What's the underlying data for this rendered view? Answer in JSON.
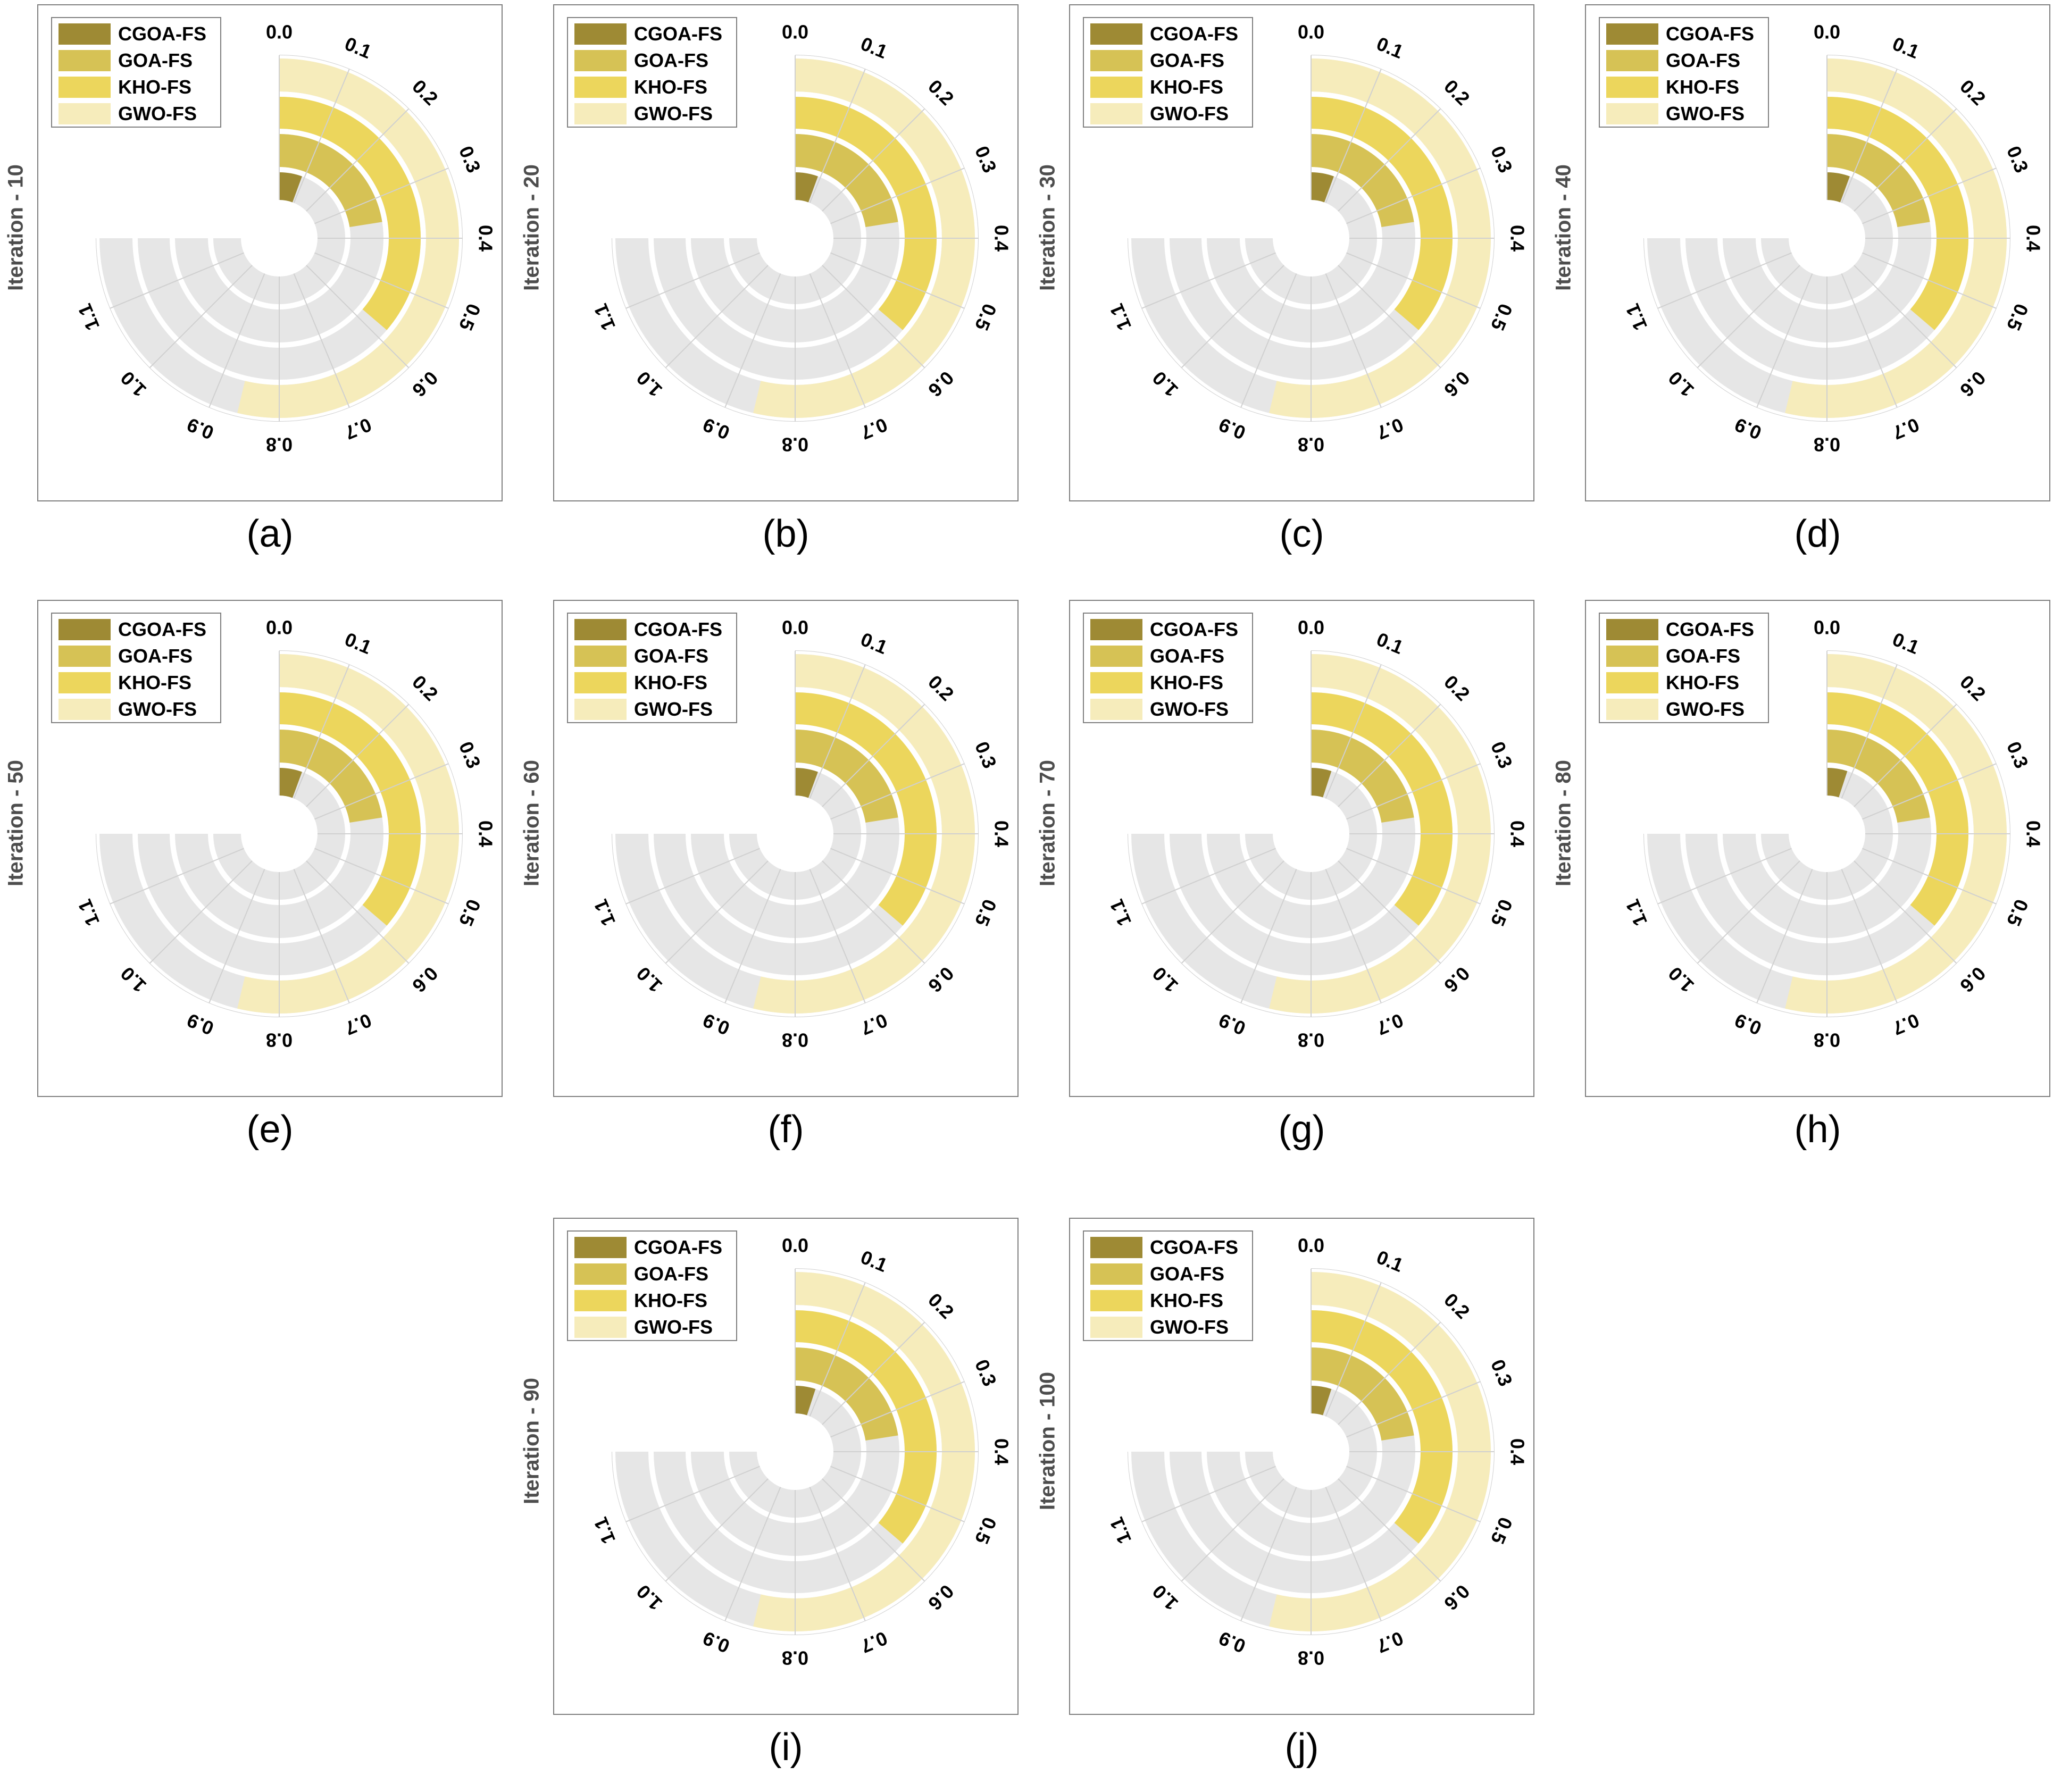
{
  "colors": {
    "background_ring": "#e6e6e6",
    "CGOA-FS": "#9e8a34",
    "GOA-FS": "#d6c255",
    "KHO-FS": "#ecd65c",
    "GWO-FS": "#f6ecbb",
    "frame": "#7f7f7f",
    "grid": "#d0d0d0"
  },
  "legend": [
    "CGOA-FS",
    "GOA-FS",
    "KHO-FS",
    "GWO-FS"
  ],
  "theta_ticks": [
    "0.0",
    "0.1",
    "0.2",
    "0.3",
    "0.4",
    "0.5",
    "0.6",
    "0.7",
    "0.8",
    "0.9",
    "1.0",
    "1.1"
  ],
  "chart_data": [
    {
      "type": "radial-bar",
      "caption": "(a)",
      "ylabel": "Iteration - 10",
      "theta_range": [
        0,
        1.2
      ],
      "series": [
        {
          "name": "CGOA-FS",
          "value": 0.09
        },
        {
          "name": "GOA-FS",
          "value": 0.36
        },
        {
          "name": "KHO-FS",
          "value": 0.58
        },
        {
          "name": "GWO-FS",
          "value": 0.86
        }
      ]
    },
    {
      "type": "radial-bar",
      "caption": "(b)",
      "ylabel": "Iteration - 20",
      "theta_range": [
        0,
        1.2
      ],
      "series": [
        {
          "name": "CGOA-FS",
          "value": 0.09
        },
        {
          "name": "GOA-FS",
          "value": 0.36
        },
        {
          "name": "KHO-FS",
          "value": 0.58
        },
        {
          "name": "GWO-FS",
          "value": 0.86
        }
      ]
    },
    {
      "type": "radial-bar",
      "caption": "(c)",
      "ylabel": "Iteration - 30",
      "theta_range": [
        0,
        1.2
      ],
      "series": [
        {
          "name": "CGOA-FS",
          "value": 0.09
        },
        {
          "name": "GOA-FS",
          "value": 0.36
        },
        {
          "name": "KHO-FS",
          "value": 0.58
        },
        {
          "name": "GWO-FS",
          "value": 0.86
        }
      ]
    },
    {
      "type": "radial-bar",
      "caption": "(d)",
      "ylabel": "Iteration - 40",
      "theta_range": [
        0,
        1.2
      ],
      "series": [
        {
          "name": "CGOA-FS",
          "value": 0.09
        },
        {
          "name": "GOA-FS",
          "value": 0.36
        },
        {
          "name": "KHO-FS",
          "value": 0.58
        },
        {
          "name": "GWO-FS",
          "value": 0.86
        }
      ]
    },
    {
      "type": "radial-bar",
      "caption": "(e)",
      "ylabel": "Iteration - 50",
      "theta_range": [
        0,
        1.2
      ],
      "series": [
        {
          "name": "CGOA-FS",
          "value": 0.09
        },
        {
          "name": "GOA-FS",
          "value": 0.36
        },
        {
          "name": "KHO-FS",
          "value": 0.58
        },
        {
          "name": "GWO-FS",
          "value": 0.86
        }
      ]
    },
    {
      "type": "radial-bar",
      "caption": "(f)",
      "ylabel": "Iteration - 60",
      "theta_range": [
        0,
        1.2
      ],
      "series": [
        {
          "name": "CGOA-FS",
          "value": 0.09
        },
        {
          "name": "GOA-FS",
          "value": 0.36
        },
        {
          "name": "KHO-FS",
          "value": 0.58
        },
        {
          "name": "GWO-FS",
          "value": 0.86
        }
      ]
    },
    {
      "type": "radial-bar",
      "caption": "(g)",
      "ylabel": "Iteration - 70",
      "theta_range": [
        0,
        1.2
      ],
      "series": [
        {
          "name": "CGOA-FS",
          "value": 0.08
        },
        {
          "name": "GOA-FS",
          "value": 0.36
        },
        {
          "name": "KHO-FS",
          "value": 0.58
        },
        {
          "name": "GWO-FS",
          "value": 0.86
        }
      ]
    },
    {
      "type": "radial-bar",
      "caption": "(h)",
      "ylabel": "Iteration - 80",
      "theta_range": [
        0,
        1.2
      ],
      "series": [
        {
          "name": "CGOA-FS",
          "value": 0.08
        },
        {
          "name": "GOA-FS",
          "value": 0.36
        },
        {
          "name": "KHO-FS",
          "value": 0.58
        },
        {
          "name": "GWO-FS",
          "value": 0.86
        }
      ]
    },
    {
      "type": "radial-bar",
      "caption": "(i)",
      "ylabel": "Iteration - 90",
      "theta_range": [
        0,
        1.2
      ],
      "series": [
        {
          "name": "CGOA-FS",
          "value": 0.08
        },
        {
          "name": "GOA-FS",
          "value": 0.36
        },
        {
          "name": "KHO-FS",
          "value": 0.58
        },
        {
          "name": "GWO-FS",
          "value": 0.86
        }
      ]
    },
    {
      "type": "radial-bar",
      "caption": "(j)",
      "ylabel": "Iteration - 100",
      "theta_range": [
        0,
        1.2
      ],
      "series": [
        {
          "name": "CGOA-FS",
          "value": 0.08
        },
        {
          "name": "GOA-FS",
          "value": 0.36
        },
        {
          "name": "KHO-FS",
          "value": 0.58
        },
        {
          "name": "GWO-FS",
          "value": 0.86
        }
      ]
    }
  ]
}
